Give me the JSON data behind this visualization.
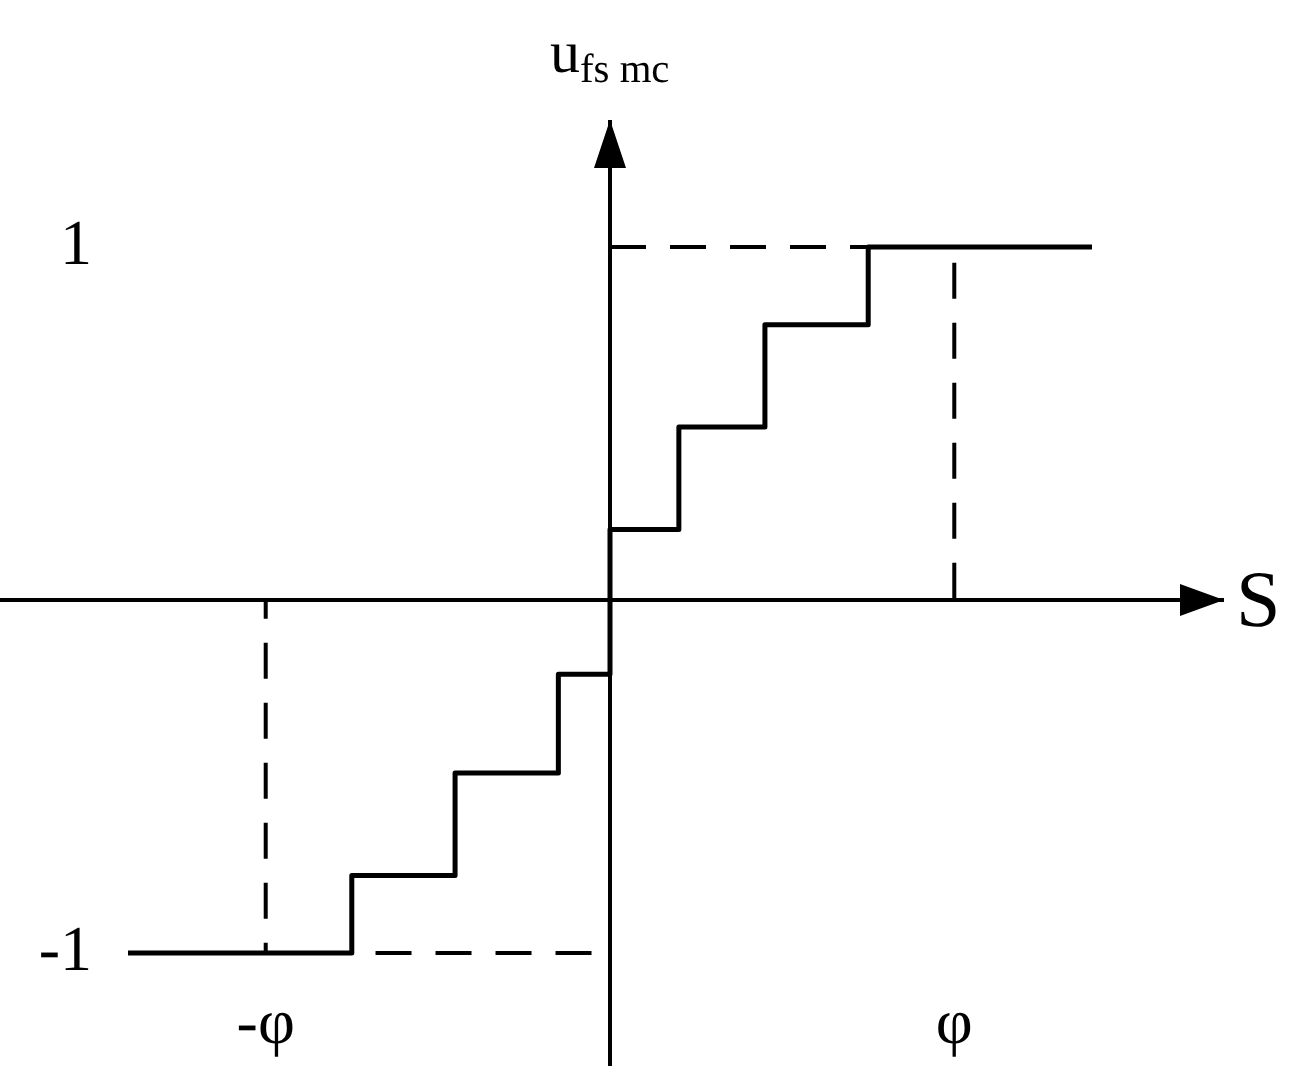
{
  "chart_data": {
    "type": "step",
    "xlabel": "S",
    "ylabel": "u$_{fs mc}$",
    "marker": "none",
    "categories": [
      null,
      null,
      null,
      null,
      null,
      null,
      null,
      null,
      "-φ",
      null,
      null,
      null,
      null,
      null,
      null,
      null,
      null,
      null,
      null,
      null,
      null,
      null,
      null,
      null,
      null,
      null,
      null,
      null,
      null,
      null,
      null,
      null,
      null,
      null,
      null,
      null,
      null,
      null,
      null,
      null,
      null,
      null,
      null,
      null,
      null,
      null,
      null,
      null,
      "φ",
      null,
      null,
      null,
      null,
      null,
      null,
      null,
      null
    ],
    "ylim": [
      -1.32,
      1.36
    ],
    "yticks": [
      -1,
      1
    ],
    "series": [
      {
        "values": [
          -1,
          -1,
          -1,
          -1,
          -1,
          -1,
          -1,
          -1,
          -1,
          -1,
          -1,
          -1,
          -1,
          -0.78,
          -0.78,
          -0.78,
          -0.78,
          -0.78,
          -0.78,
          -0.49,
          -0.49,
          -0.49,
          -0.49,
          -0.49,
          -0.49,
          -0.21,
          -0.21,
          -0.21,
          0.2,
          0.2,
          0.2,
          0.2,
          0.49,
          0.49,
          0.49,
          0.49,
          0.49,
          0.78,
          0.78,
          0.78,
          0.78,
          0.78,
          0.78,
          1,
          1,
          1,
          1,
          1,
          1,
          1,
          1,
          1,
          1,
          1,
          1,
          1,
          1
        ],
        "color": "#000000"
      },
      {
        "line_style": "dashed",
        "values": [
          null,
          null,
          null,
          null,
          null,
          null,
          null,
          null,
          null,
          null,
          null,
          null,
          null,
          null,
          null,
          null,
          null,
          null,
          null,
          null,
          null,
          null,
          null,
          null,
          null,
          null,
          null,
          null,
          1,
          1,
          1,
          1,
          1,
          1,
          1,
          1,
          1,
          1,
          1,
          1,
          1,
          1,
          1,
          1,
          1,
          1,
          1,
          1,
          0,
          null,
          null,
          null,
          null,
          null,
          null,
          null,
          null
        ],
        "color": "#000000"
      },
      {
        "line_style": "dashed",
        "values": [
          null,
          null,
          null,
          null,
          null,
          null,
          null,
          0,
          -1,
          -1,
          -1,
          -1,
          -1,
          -1,
          -1,
          -1,
          -1,
          -1,
          -1,
          -1,
          -1,
          -1,
          -1,
          -1,
          -1,
          -1,
          -1,
          -1,
          -1,
          null,
          null,
          null,
          null,
          null,
          null,
          null,
          null,
          null,
          null,
          null,
          null,
          null,
          null,
          null,
          null,
          null,
          null,
          null,
          null,
          null,
          null,
          null,
          null,
          null,
          null,
          null,
          null
        ],
        "color": "#000000"
      }
    ]
  }
}
